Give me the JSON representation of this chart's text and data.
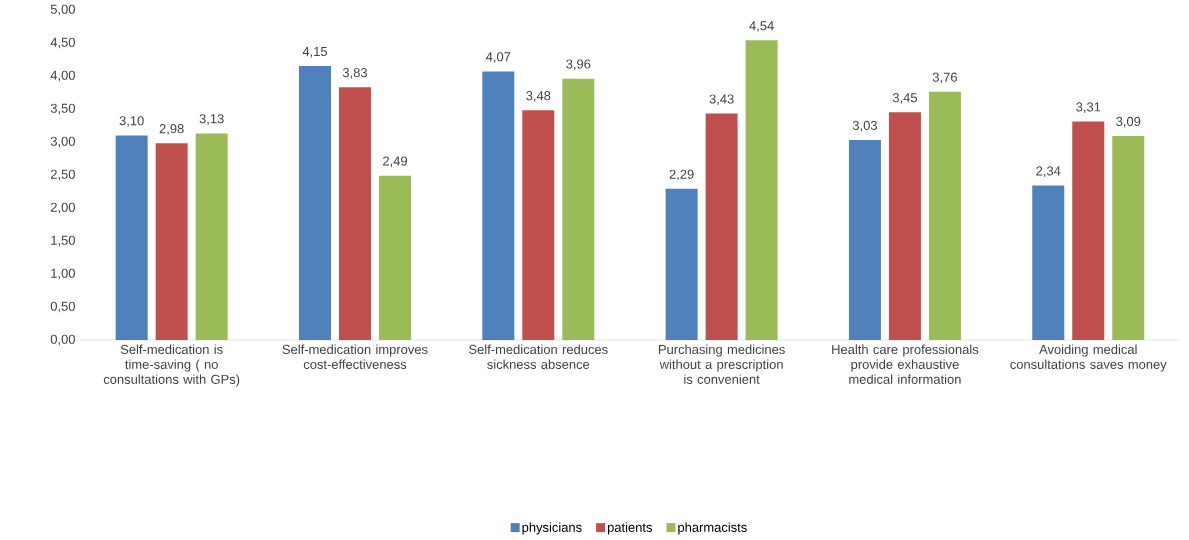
{
  "chart_data": {
    "type": "bar",
    "categories": [
      "Self-medication is time-saving ( no consultations with GPs)",
      "Self-medication improves cost-effectiveness",
      "Self-medication reduces sickness absence",
      "Purchasing medicines without a prescription is convenient",
      "Health care professionals provide exhaustive medical information",
      "Avoiding medical consultations saves money"
    ],
    "series": [
      {
        "name": "physicians",
        "color": "#4f81bd",
        "values": [
          3.1,
          4.15,
          4.07,
          2.29,
          3.03,
          2.34
        ],
        "value_labels": [
          "3,10",
          "4,15",
          "4,07",
          "2,29",
          "3,03",
          "2,34"
        ]
      },
      {
        "name": "patients",
        "color": "#c0504d",
        "values": [
          2.98,
          3.83,
          3.48,
          3.43,
          3.45,
          3.31
        ],
        "value_labels": [
          "2,98",
          "3,83",
          "3,48",
          "3,43",
          "3,45",
          "3,31"
        ]
      },
      {
        "name": "pharmacists",
        "color": "#9bbb59",
        "values": [
          3.13,
          2.49,
          3.96,
          4.54,
          3.76,
          3.09
        ],
        "value_labels": [
          "3,13",
          "2,49",
          "3,96",
          "4,54",
          "3,76",
          "3,09"
        ]
      }
    ],
    "ylim": [
      0,
      5
    ],
    "yticks": [
      {
        "value": 0,
        "label": "0,00"
      },
      {
        "value": 0.5,
        "label": "0,50"
      },
      {
        "value": 1,
        "label": "1,00"
      },
      {
        "value": 1.5,
        "label": "1,50"
      },
      {
        "value": 2,
        "label": "2,00"
      },
      {
        "value": 2.5,
        "label": "2,50"
      },
      {
        "value": 3,
        "label": "3,00"
      },
      {
        "value": 3.5,
        "label": "3,50"
      },
      {
        "value": 4,
        "label": "4,00"
      },
      {
        "value": 4.5,
        "label": "4,50"
      },
      {
        "value": 5,
        "label": "5,00"
      }
    ],
    "legend": "bottom"
  }
}
